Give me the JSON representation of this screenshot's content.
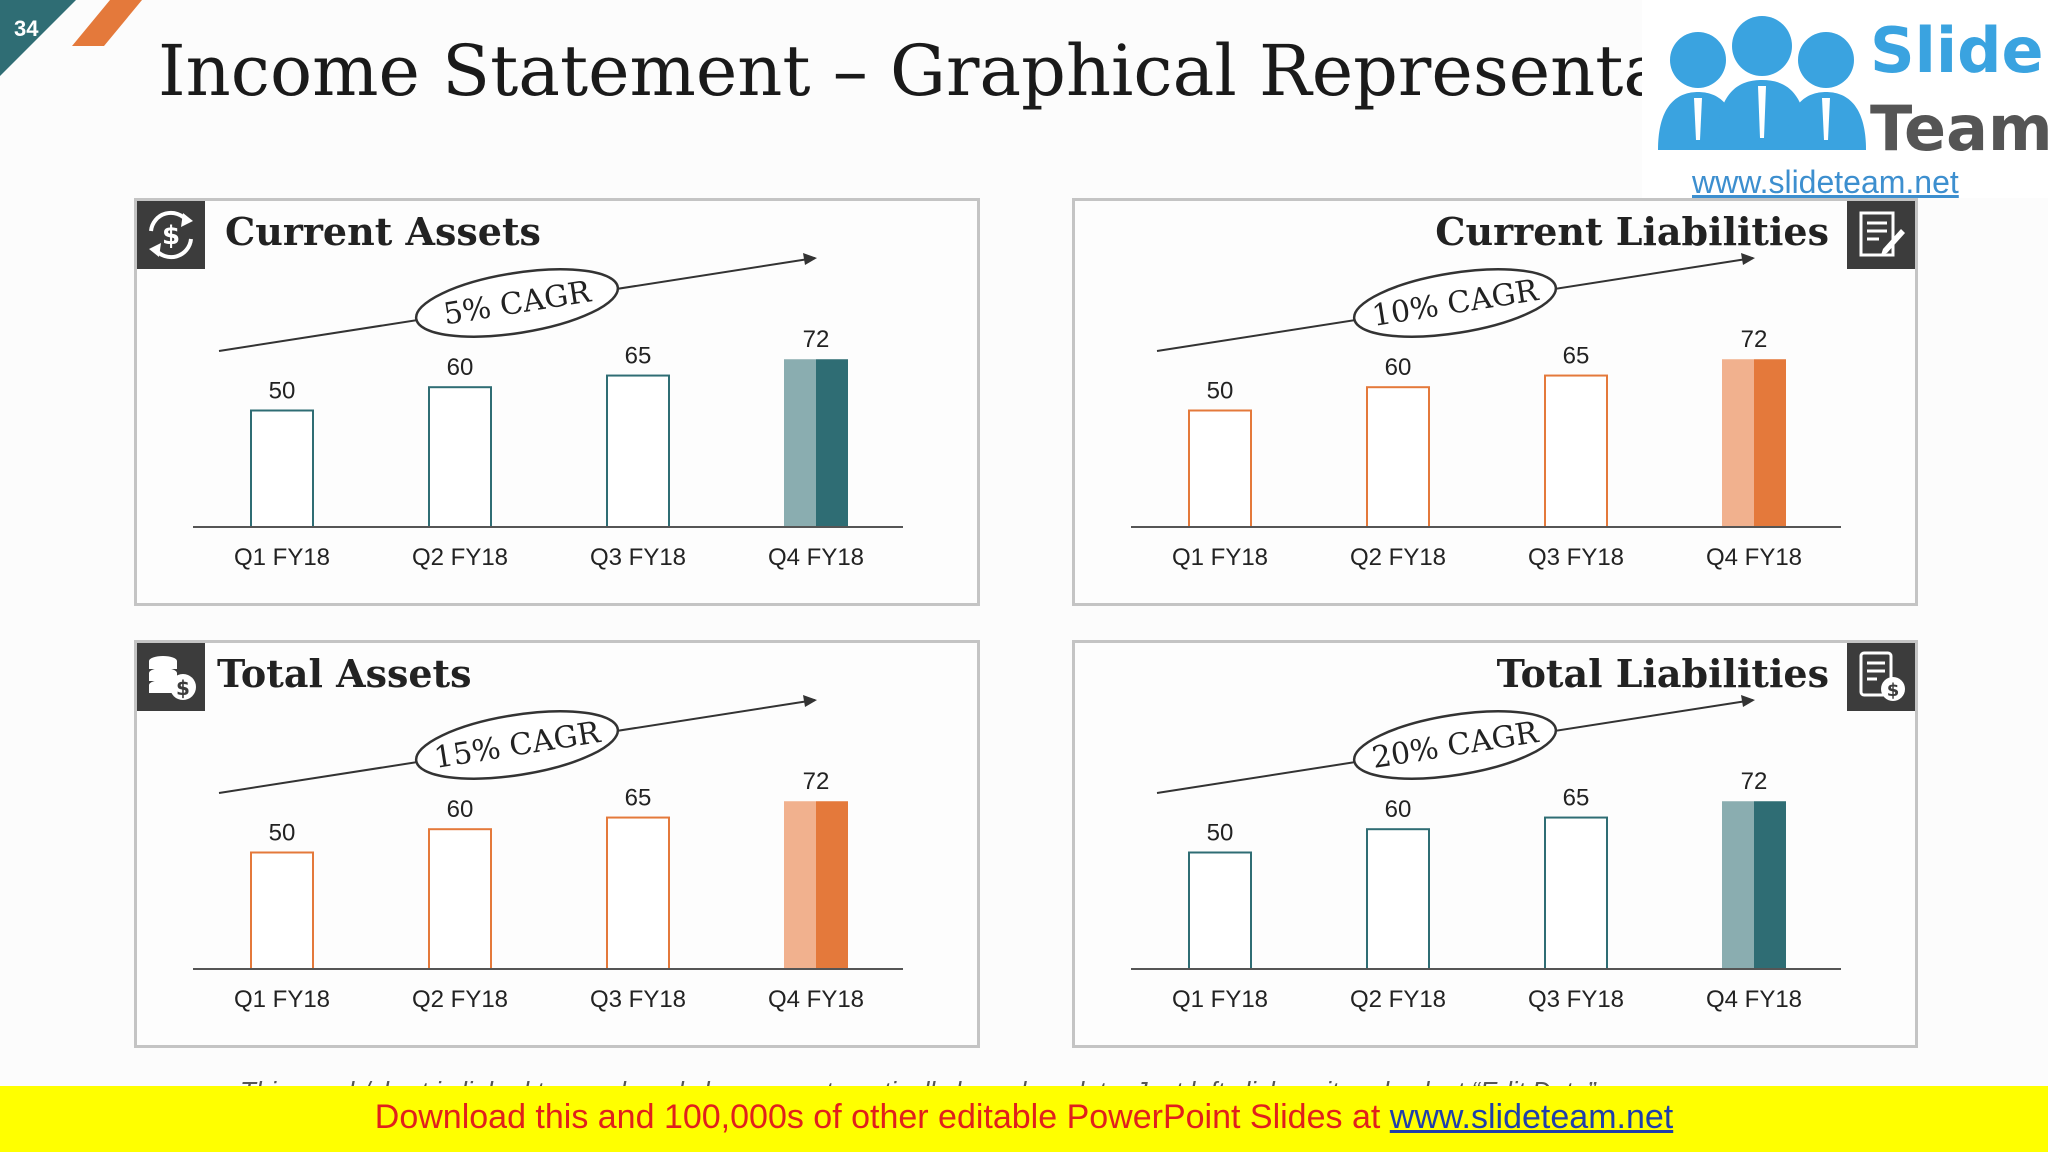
{
  "slide_number": "34",
  "title": "Income Statement – Graphical Representation",
  "logo": {
    "word1": "Slide",
    "word2": "Team",
    "url": "www.slideteam.net"
  },
  "colors": {
    "teal": "#2f6d74",
    "teal_light": "#8aadb0",
    "orange": "#e4793b",
    "orange_light": "#f1b18e"
  },
  "footnote": "This graph/chart is linked to excel, and changes automatically based on data. Just left click on it and select “Edit Data”.",
  "banner": {
    "text": "Download this and 100,000s of other editable PowerPoint Slides at ",
    "link": "www.slideteam.net"
  },
  "panels": [
    {
      "title": "Current Assets",
      "icon": "money-cycle-icon",
      "cagr": "5% CAGR"
    },
    {
      "title": "Current Liabilities",
      "icon": "document-edit-icon",
      "cagr": "10% CAGR"
    },
    {
      "title": "Total Assets",
      "icon": "coins-stack-icon",
      "cagr": "15% CAGR"
    },
    {
      "title": "Total Liabilities",
      "icon": "bill-dollar-icon",
      "cagr": "20% CAGR"
    }
  ],
  "chart_data": [
    {
      "type": "bar",
      "title": "Current Assets",
      "categories": [
        "Q1 FY18",
        "Q2 FY18",
        "Q3 FY18",
        "Q4 FY18"
      ],
      "values": [
        50,
        60,
        65,
        72
      ],
      "annotation": "5% CAGR",
      "color": "#2f6d74",
      "highlight_color": "#8aadb0"
    },
    {
      "type": "bar",
      "title": "Current Liabilities",
      "categories": [
        "Q1 FY18",
        "Q2 FY18",
        "Q3 FY18",
        "Q4 FY18"
      ],
      "values": [
        50,
        60,
        65,
        72
      ],
      "annotation": "10% CAGR",
      "color": "#e4793b",
      "highlight_color": "#f1b18e"
    },
    {
      "type": "bar",
      "title": "Total Assets",
      "categories": [
        "Q1 FY18",
        "Q2 FY18",
        "Q3 FY18",
        "Q4 FY18"
      ],
      "values": [
        50,
        60,
        65,
        72
      ],
      "annotation": "15% CAGR",
      "color": "#e4793b",
      "highlight_color": "#f1b18e"
    },
    {
      "type": "bar",
      "title": "Total Liabilities",
      "categories": [
        "Q1 FY18",
        "Q2 FY18",
        "Q3 FY18",
        "Q4 FY18"
      ],
      "values": [
        50,
        60,
        65,
        72
      ],
      "annotation": "20% CAGR",
      "color": "#2f6d74",
      "highlight_color": "#8aadb0"
    }
  ]
}
